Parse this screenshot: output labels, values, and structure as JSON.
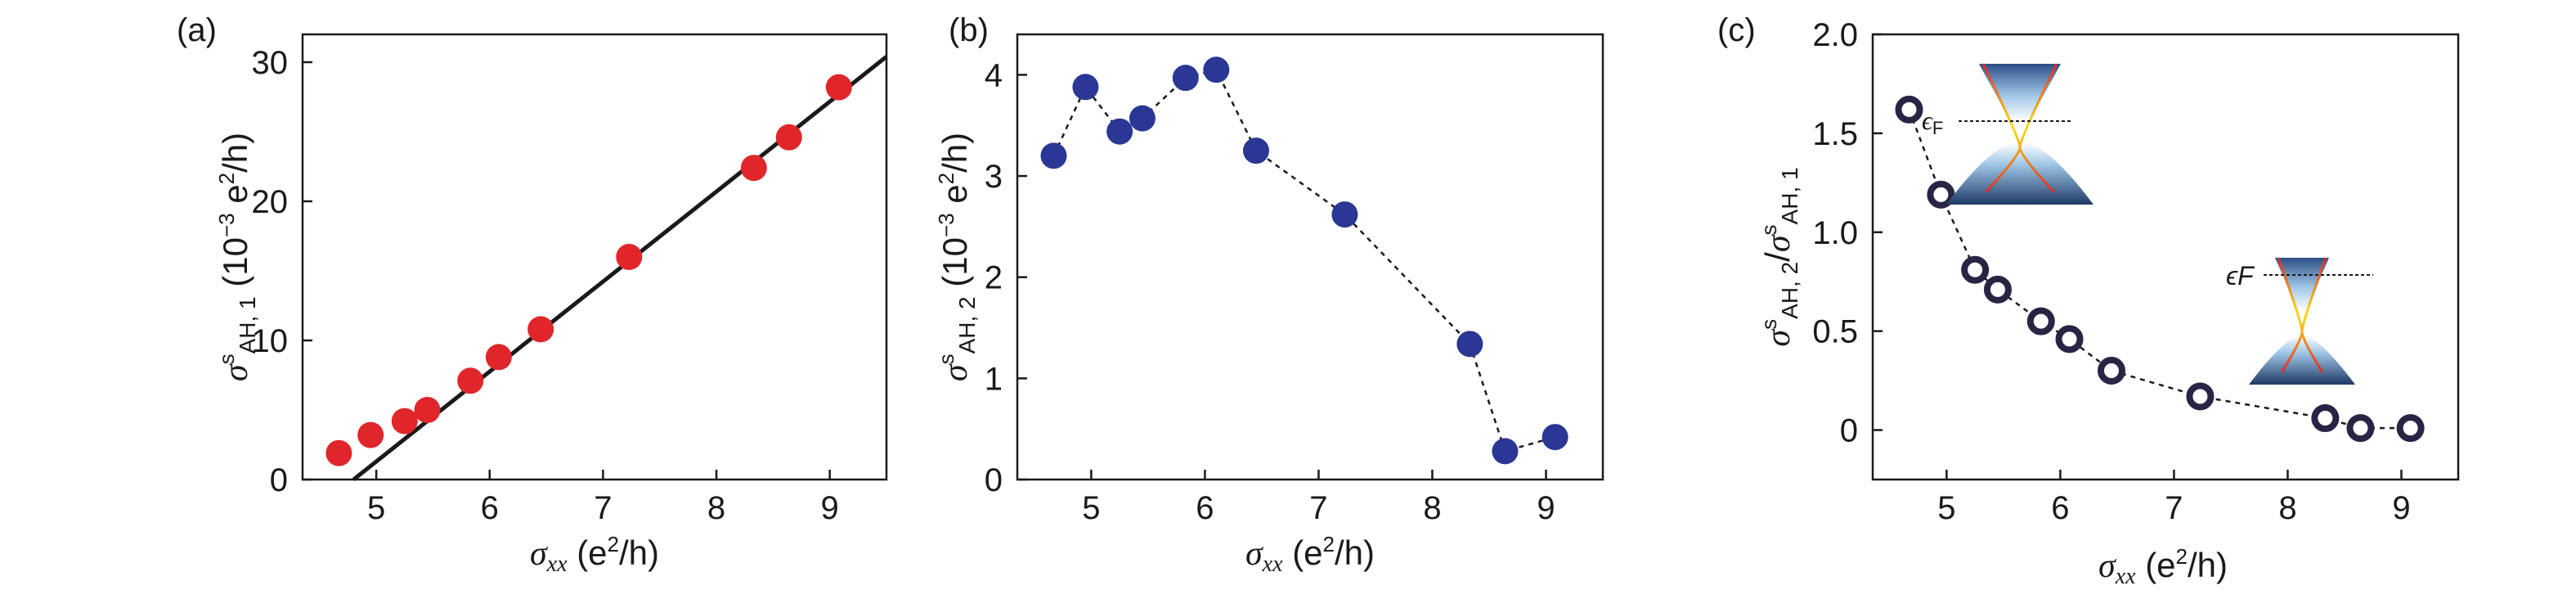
{
  "chart_data": [
    {
      "panel_label": "(a)",
      "type": "scatter",
      "xlim": [
        4.35,
        9.5
      ],
      "ylim": [
        0,
        32
      ],
      "xticks": [
        "5",
        "6",
        "7",
        "8",
        "9"
      ],
      "yticks": [
        "0",
        "10",
        "20",
        "30"
      ],
      "xlabel": "σxx (e²/h)",
      "ylabel": "σsAH, 1 (10⁻³ e²/h)",
      "marker_color": "#e0262a",
      "points": [
        {
          "x": 4.67,
          "y": 1.9
        },
        {
          "x": 4.95,
          "y": 3.2
        },
        {
          "x": 5.25,
          "y": 4.2
        },
        {
          "x": 5.45,
          "y": 5.0
        },
        {
          "x": 5.83,
          "y": 7.1
        },
        {
          "x": 6.08,
          "y": 8.8
        },
        {
          "x": 6.45,
          "y": 10.8
        },
        {
          "x": 7.23,
          "y": 16.0
        },
        {
          "x": 8.33,
          "y": 22.4
        },
        {
          "x": 8.64,
          "y": 24.6
        },
        {
          "x": 9.08,
          "y": 28.2
        }
      ],
      "fit_line": {
        "x": [
          4.8,
          9.5
        ],
        "y": [
          0,
          30.4
        ],
        "color": "#1a1a1a"
      }
    },
    {
      "panel_label": "(b)",
      "type": "line",
      "xlim": [
        4.35,
        9.5
      ],
      "ylim": [
        0,
        4.4
      ],
      "xticks": [
        "5",
        "6",
        "7",
        "8",
        "9"
      ],
      "yticks": [
        "0",
        "1",
        "2",
        "3",
        "4"
      ],
      "xlabel": "σxx (e²/h)",
      "ylabel": "σsAH, 2 (10⁻³ e²/h)",
      "marker_color": "#2a3794",
      "line_style": "dashed",
      "points": [
        {
          "x": 4.67,
          "y": 3.2
        },
        {
          "x": 4.95,
          "y": 3.88
        },
        {
          "x": 5.25,
          "y": 3.44
        },
        {
          "x": 5.45,
          "y": 3.57
        },
        {
          "x": 5.83,
          "y": 3.97
        },
        {
          "x": 6.1,
          "y": 4.05
        },
        {
          "x": 6.45,
          "y": 3.25
        },
        {
          "x": 7.23,
          "y": 2.62
        },
        {
          "x": 8.33,
          "y": 1.34
        },
        {
          "x": 8.64,
          "y": 0.28
        },
        {
          "x": 9.08,
          "y": 0.42
        }
      ]
    },
    {
      "panel_label": "(c)",
      "type": "line",
      "xlim": [
        4.35,
        9.5
      ],
      "ylim": [
        -0.25,
        2.0
      ],
      "xticks": [
        "5",
        "6",
        "7",
        "8",
        "9"
      ],
      "yticks": [
        "0",
        "0.5",
        "1.0",
        "1.5",
        "2.0"
      ],
      "xlabel": "σxx (e²/h)",
      "ylabel": "σsAH, 2/σsAH, 1",
      "marker_color": "#2a2444",
      "marker_style": "open-circle",
      "line_style": "dashed",
      "points": [
        {
          "x": 4.67,
          "y": 1.62
        },
        {
          "x": 4.95,
          "y": 1.19
        },
        {
          "x": 5.25,
          "y": 0.81
        },
        {
          "x": 5.45,
          "y": 0.71
        },
        {
          "x": 5.83,
          "y": 0.55
        },
        {
          "x": 6.08,
          "y": 0.46
        },
        {
          "x": 6.45,
          "y": 0.3
        },
        {
          "x": 7.23,
          "y": 0.17
        },
        {
          "x": 8.33,
          "y": 0.06
        },
        {
          "x": 8.64,
          "y": 0.01
        },
        {
          "x": 9.08,
          "y": 0.01
        }
      ],
      "inset_label": "ϵF"
    }
  ]
}
